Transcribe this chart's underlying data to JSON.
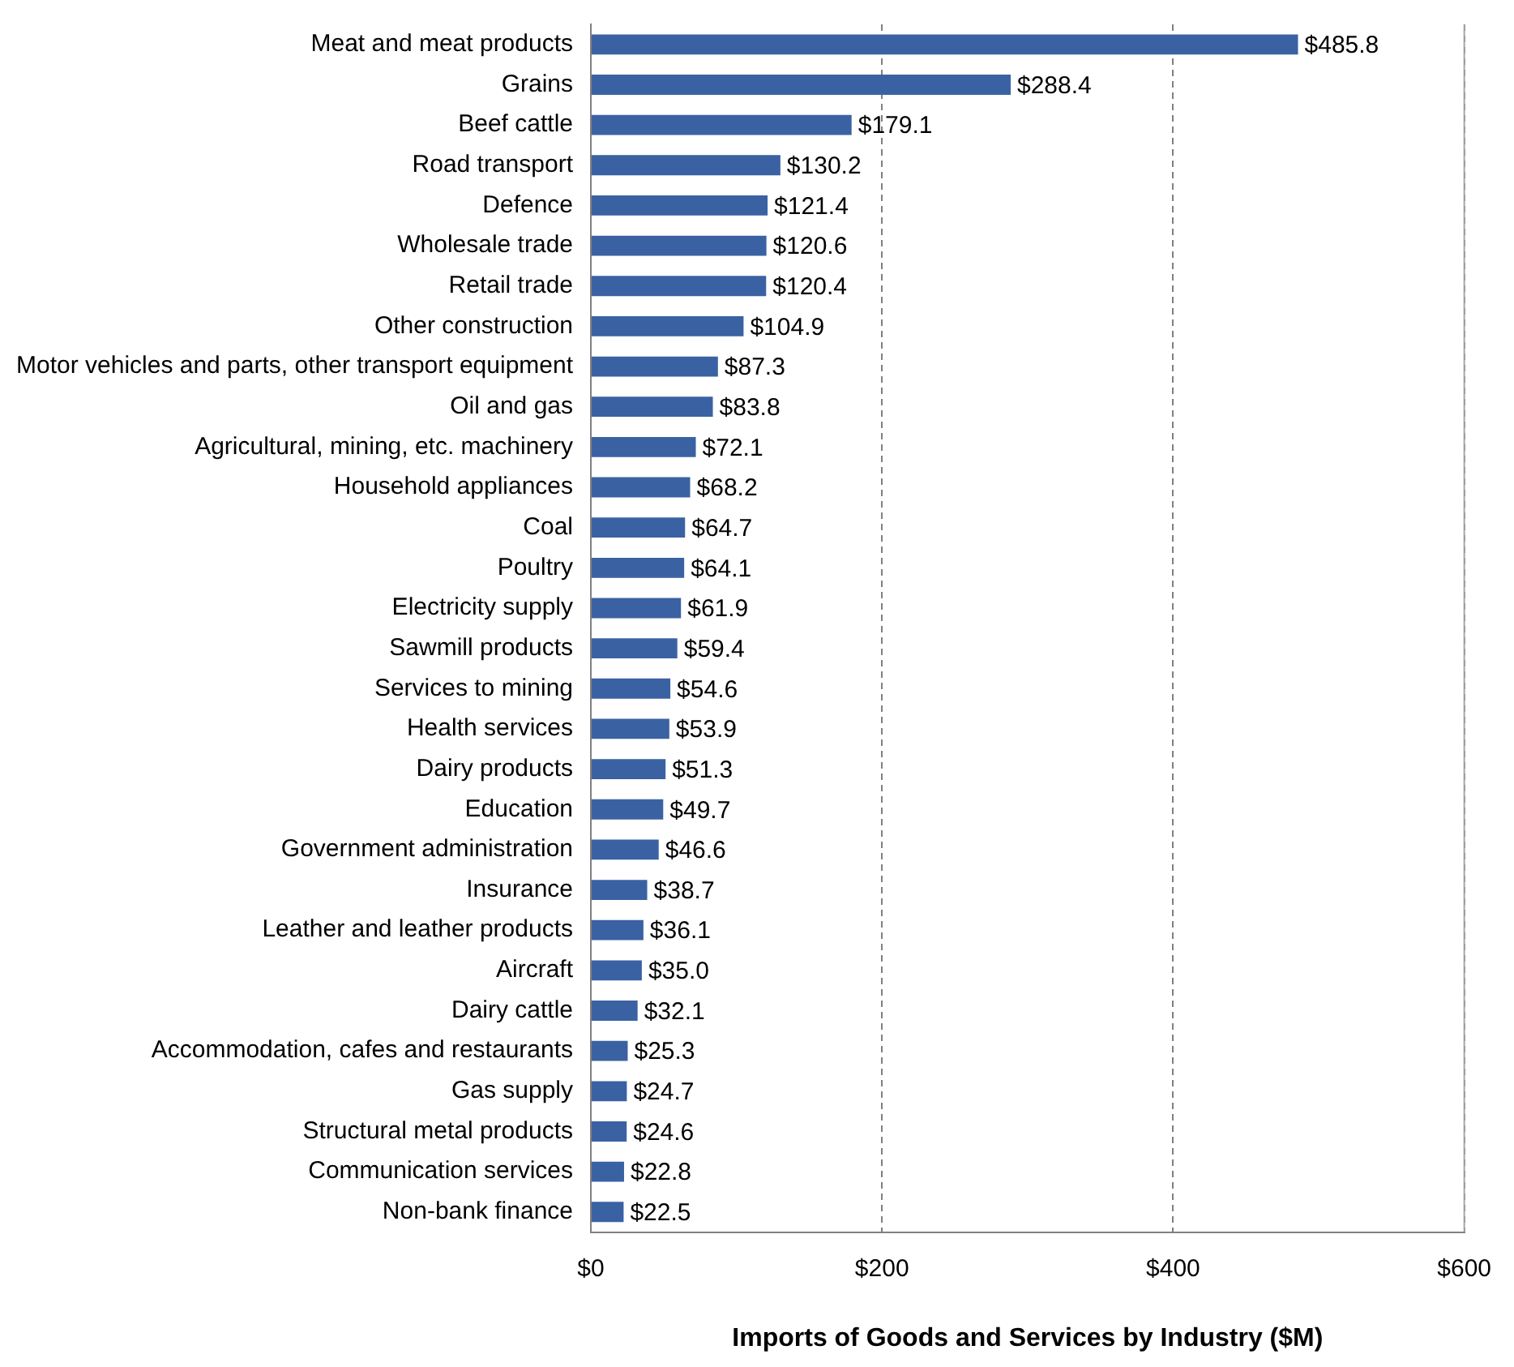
{
  "chart_data": {
    "type": "bar",
    "orientation": "horizontal",
    "xlabel": "Imports of Goods and Services by Industry ($M)",
    "categories": [
      "Meat and meat products",
      "Grains",
      "Beef cattle",
      "Road transport",
      "Defence",
      "Wholesale trade",
      "Retail trade",
      "Other construction",
      "Motor vehicles and parts, other transport equipment",
      "Oil and gas",
      "Agricultural, mining, etc. machinery",
      "Household appliances",
      "Coal",
      "Poultry",
      "Electricity supply",
      "Sawmill products",
      "Services to mining",
      "Health services",
      "Dairy products",
      "Education",
      "Government administration",
      "Insurance",
      "Leather and leather products",
      "Aircraft",
      "Dairy cattle",
      "Accommodation, cafes and restaurants",
      "Gas supply",
      "Structural metal products",
      "Communication services",
      "Non-bank finance"
    ],
    "values": [
      485.8,
      288.4,
      179.1,
      130.2,
      121.4,
      120.6,
      120.4,
      104.9,
      87.3,
      83.8,
      72.1,
      68.2,
      64.7,
      64.1,
      61.9,
      59.4,
      54.6,
      53.9,
      51.3,
      49.7,
      46.6,
      38.7,
      36.1,
      35.0,
      32.1,
      25.3,
      24.7,
      24.6,
      22.8,
      22.5
    ],
    "value_labels": [
      "$485.8",
      "$288.4",
      "$179.1",
      "$130.2",
      "$121.4",
      "$120.6",
      "$120.4",
      "$104.9",
      "$87.3",
      "$83.8",
      "$72.1",
      "$68.2",
      "$64.7",
      "$64.1",
      "$61.9",
      "$59.4",
      "$54.6",
      "$53.9",
      "$51.3",
      "$49.7",
      "$46.6",
      "$38.7",
      "$36.1",
      "$35.0",
      "$32.1",
      "$25.3",
      "$24.7",
      "$24.6",
      "$22.8",
      "$22.5"
    ],
    "color": "#3a62a3",
    "xlim": [
      0,
      600
    ],
    "xticks": [
      {
        "value": 0,
        "label": "$0"
      },
      {
        "value": 200,
        "label": "$200"
      },
      {
        "value": 400,
        "label": "$400"
      },
      {
        "value": 600,
        "label": "$600"
      }
    ],
    "grid": "x",
    "legend": false
  }
}
